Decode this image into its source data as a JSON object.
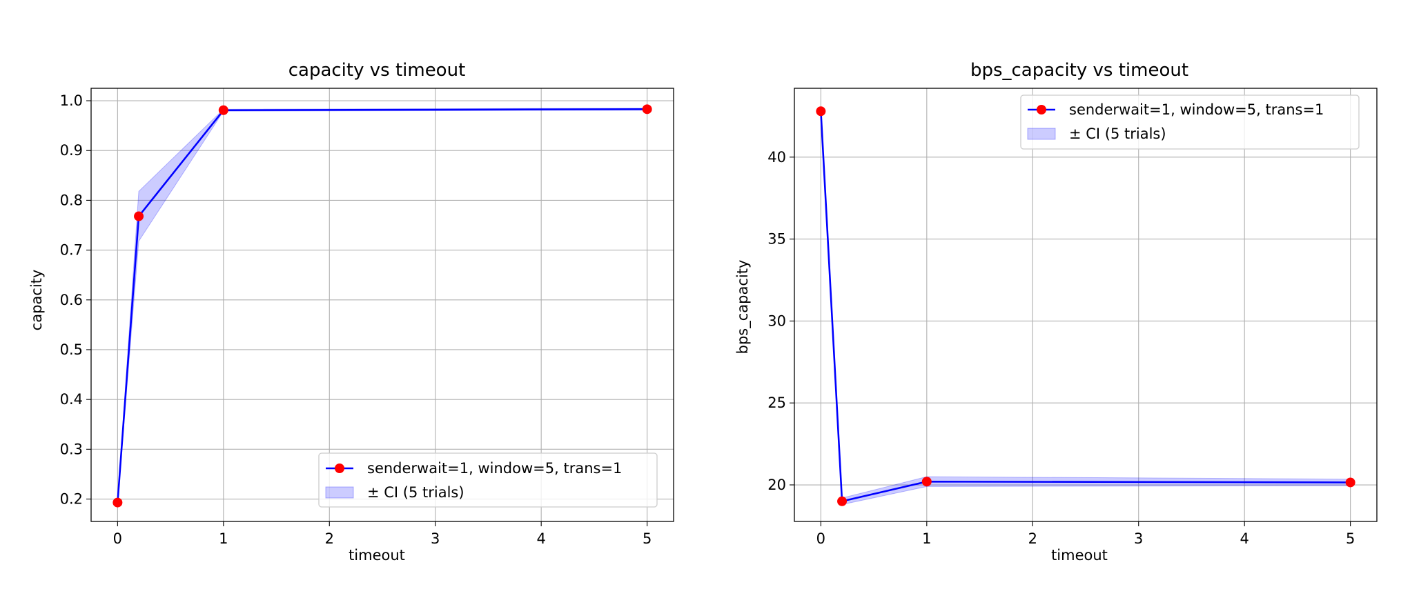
{
  "chart_data": [
    {
      "type": "line",
      "title": "capacity vs timeout",
      "xlabel": "timeout",
      "ylabel": "capacity",
      "xlim": [
        -0.25,
        5.25
      ],
      "ylim": [
        0.155,
        1.025
      ],
      "xticks": [
        0,
        1,
        2,
        3,
        4,
        5
      ],
      "xtick_labels": [
        "0",
        "1",
        "2",
        "3",
        "4",
        "5"
      ],
      "yticks": [
        0.2,
        0.3,
        0.4,
        0.5,
        0.6,
        0.7,
        0.8,
        0.9,
        1.0
      ],
      "ytick_labels": [
        "0.2",
        "0.3",
        "0.4",
        "0.5",
        "0.6",
        "0.7",
        "0.8",
        "0.9",
        "1.0"
      ],
      "grid": true,
      "legend_position": "lower-right",
      "series": [
        {
          "name": "senderwait=1, window=5, trans=1",
          "x": [
            0,
            0.2,
            1,
            5
          ],
          "y": [
            0.193,
            0.768,
            0.981,
            0.983
          ],
          "ci_lower": [
            0.193,
            0.718,
            0.979,
            0.981
          ],
          "ci_upper": [
            0.193,
            0.818,
            0.983,
            0.985
          ],
          "ci_label": "± CI (5 trials)",
          "line_color": "#0000ff",
          "marker_color": "#ff0000",
          "fill_color": "#0000ff"
        }
      ]
    },
    {
      "type": "line",
      "title": "bps_capacity vs timeout",
      "xlabel": "timeout",
      "ylabel": "bps_capacity",
      "xlim": [
        -0.25,
        5.25
      ],
      "ylim": [
        17.77,
        44.2
      ],
      "xticks": [
        0,
        1,
        2,
        3,
        4,
        5
      ],
      "xtick_labels": [
        "0",
        "1",
        "2",
        "3",
        "4",
        "5"
      ],
      "yticks": [
        20,
        25,
        30,
        35,
        40
      ],
      "ytick_labels": [
        "20",
        "25",
        "30",
        "35",
        "40"
      ],
      "grid": true,
      "legend_position": "upper-right",
      "series": [
        {
          "name": "senderwait=1, window=5, trans=1",
          "x": [
            0,
            0.2,
            1,
            5
          ],
          "y": [
            42.8,
            19.0,
            20.2,
            20.15
          ],
          "ci_lower": [
            42.8,
            18.8,
            19.9,
            19.95
          ],
          "ci_upper": [
            42.8,
            19.2,
            20.5,
            20.35
          ],
          "ci_label": "± CI (5 trials)",
          "line_color": "#0000ff",
          "marker_color": "#ff0000",
          "fill_color": "#0000ff"
        }
      ]
    }
  ]
}
